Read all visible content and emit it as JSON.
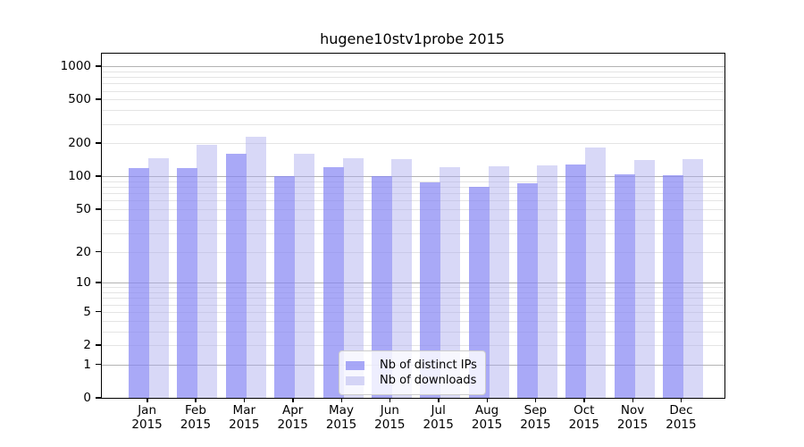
{
  "chart_data": {
    "type": "bar",
    "title": "hugene10stv1probe 2015",
    "categories": [
      "Jan",
      "Feb",
      "Mar",
      "Apr",
      "May",
      "Jun",
      "Jul",
      "Aug",
      "Sep",
      "Oct",
      "Nov",
      "Dec"
    ],
    "year_label": "2015",
    "series": [
      {
        "name": "Nb of distinct IPs",
        "color_hex": "#a9a9f7",
        "color": "rgba(132,132,244,0.70)",
        "values": [
          120,
          120,
          161,
          100,
          122,
          100,
          89,
          80,
          86,
          129,
          105,
          103
        ]
      },
      {
        "name": "Nb of downloads",
        "color_hex": "#d8d8f8",
        "color": "rgba(168,168,238,0.45)",
        "values": [
          148,
          193,
          228,
          160,
          147,
          143,
          122,
          123,
          126,
          182,
          141,
          143
        ]
      }
    ],
    "xlabel": "",
    "ylabel": "",
    "y_axis": {
      "scale": "log10(value+1)",
      "ticks": [
        0,
        1,
        2,
        5,
        10,
        20,
        50,
        100,
        200,
        500,
        1000
      ],
      "minor_ticks": [
        3,
        4,
        6,
        7,
        8,
        9,
        30,
        40,
        60,
        70,
        80,
        90,
        300,
        400,
        600,
        700,
        800,
        900
      ],
      "decade_ticks": [
        1,
        10,
        100,
        1000
      ],
      "ylim": [
        0,
        1300
      ]
    },
    "grid": {
      "decade_color": "#b3b3b3",
      "minor_color": "#e4e4e4",
      "on": true
    },
    "legend": {
      "position": "bottom-center"
    },
    "frame_color": "#000000",
    "background_color": "#ffffff"
  }
}
